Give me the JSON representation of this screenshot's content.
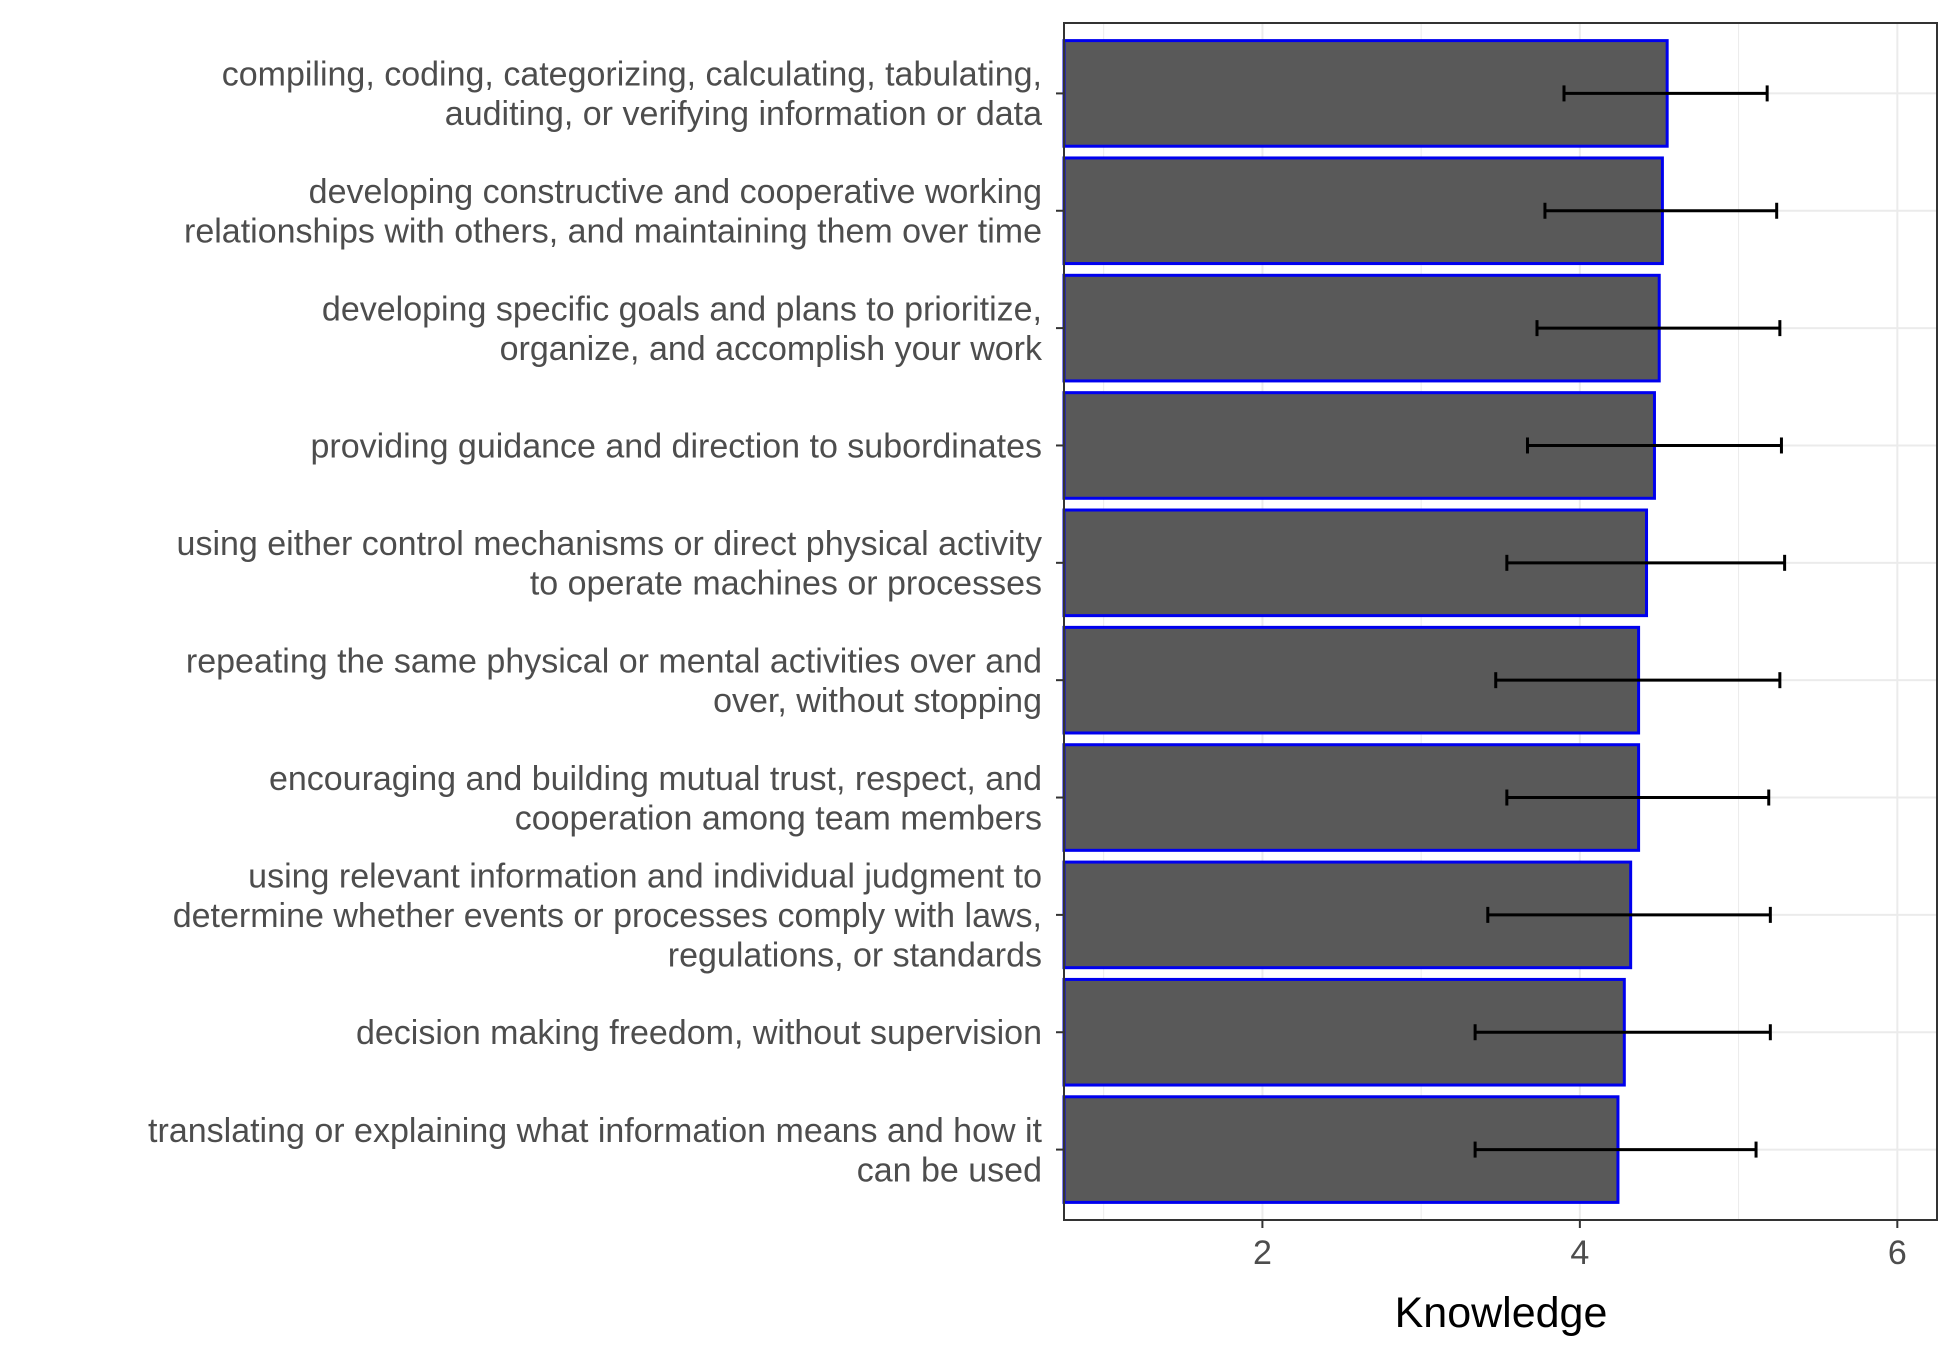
{
  "chart_data": {
    "type": "bar",
    "orientation": "horizontal",
    "title": "",
    "xlabel": "Knowledge",
    "ylabel": "",
    "xlim": [
      0.75,
      6.25
    ],
    "xticks": [
      2,
      4,
      6
    ],
    "xtick_labels": [
      "2",
      "4",
      "6"
    ],
    "grid": true,
    "legend": "none",
    "colors": {
      "bar_fill": "#595959",
      "bar_outline": "#0000ee",
      "error_bar": "#000000",
      "grid": "#ebebeb",
      "panel_border": "#333333"
    },
    "categories": [
      [
        "compiling, coding, categorizing, calculating, tabulating,",
        "auditing, or verifying information or data"
      ],
      [
        "developing constructive and cooperative working",
        "relationships with others, and maintaining them over time"
      ],
      [
        "developing specific goals and plans to prioritize,",
        "organize, and accomplish your work"
      ],
      [
        "providing guidance and direction to subordinates"
      ],
      [
        "using either control mechanisms or direct physical activity",
        "to operate machines or processes"
      ],
      [
        "repeating the same physical or mental activities over and",
        "over, without stopping"
      ],
      [
        "encouraging and building mutual trust, respect, and",
        "cooperation among team members"
      ],
      [
        "using relevant information and individual judgment to",
        "determine whether events or processes comply with laws,",
        "regulations, or standards"
      ],
      [
        "decision making freedom, without supervision"
      ],
      [
        "translating or explaining what information means and how it",
        "can be used"
      ]
    ],
    "values": [
      4.55,
      4.52,
      4.5,
      4.47,
      4.42,
      4.37,
      4.37,
      4.32,
      4.28,
      4.24
    ],
    "error_low": [
      3.9,
      3.78,
      3.73,
      3.67,
      3.54,
      3.47,
      3.54,
      3.42,
      3.34,
      3.34
    ],
    "error_high": [
      5.18,
      5.24,
      5.26,
      5.27,
      5.29,
      5.26,
      5.19,
      5.2,
      5.2,
      5.11
    ]
  }
}
